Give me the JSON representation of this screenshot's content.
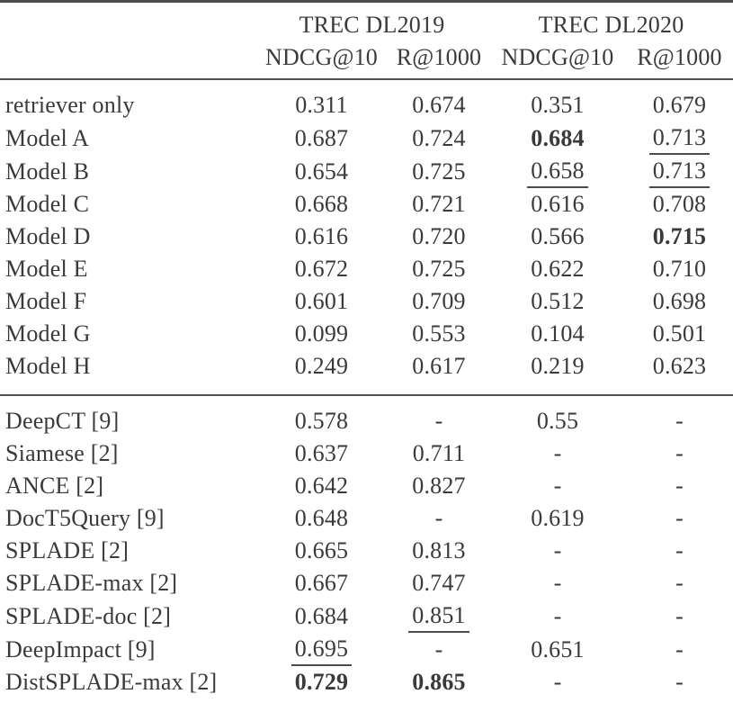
{
  "table": {
    "group_headers": [
      {
        "label": "TREC DL2019"
      },
      {
        "label": "TREC DL2020"
      }
    ],
    "metric_headers": [
      "NDCG@10",
      "R@1000",
      "NDCG@10",
      "R@1000"
    ],
    "sections": [
      {
        "rows": [
          {
            "label": "retriever only",
            "cells": [
              {
                "text": "0.311"
              },
              {
                "text": "0.674"
              },
              {
                "text": "0.351"
              },
              {
                "text": "0.679"
              }
            ]
          },
          {
            "label": "Model A",
            "cells": [
              {
                "text": "0.687"
              },
              {
                "text": "0.724"
              },
              {
                "text": "0.684",
                "style": "bold"
              },
              {
                "text": "0.713",
                "style": "underline"
              }
            ]
          },
          {
            "label": "Model B",
            "cells": [
              {
                "text": "0.654"
              },
              {
                "text": "0.725"
              },
              {
                "text": "0.658",
                "style": "underline"
              },
              {
                "text": "0.713",
                "style": "underline"
              }
            ]
          },
          {
            "label": "Model C",
            "cells": [
              {
                "text": "0.668"
              },
              {
                "text": "0.721"
              },
              {
                "text": "0.616"
              },
              {
                "text": "0.708"
              }
            ]
          },
          {
            "label": "Model D",
            "cells": [
              {
                "text": "0.616"
              },
              {
                "text": "0.720"
              },
              {
                "text": "0.566"
              },
              {
                "text": "0.715",
                "style": "bold"
              }
            ]
          },
          {
            "label": "Model E",
            "cells": [
              {
                "text": "0.672"
              },
              {
                "text": "0.725"
              },
              {
                "text": "0.622"
              },
              {
                "text": "0.710"
              }
            ]
          },
          {
            "label": "Model F",
            "cells": [
              {
                "text": "0.601"
              },
              {
                "text": "0.709"
              },
              {
                "text": "0.512"
              },
              {
                "text": "0.698"
              }
            ]
          },
          {
            "label": "Model G",
            "cells": [
              {
                "text": "0.099"
              },
              {
                "text": "0.553"
              },
              {
                "text": "0.104"
              },
              {
                "text": "0.501"
              }
            ]
          },
          {
            "label": "Model H",
            "cells": [
              {
                "text": "0.249"
              },
              {
                "text": "0.617"
              },
              {
                "text": "0.219"
              },
              {
                "text": "0.623"
              }
            ]
          }
        ]
      },
      {
        "rows": [
          {
            "label": "DeepCT [9]",
            "cells": [
              {
                "text": "0.578"
              },
              {
                "text": "-"
              },
              {
                "text": "0.55"
              },
              {
                "text": "-"
              }
            ]
          },
          {
            "label": "Siamese [2]",
            "cells": [
              {
                "text": "0.637"
              },
              {
                "text": "0.711"
              },
              {
                "text": "-"
              },
              {
                "text": "-"
              }
            ]
          },
          {
            "label": "ANCE [2]",
            "cells": [
              {
                "text": "0.642"
              },
              {
                "text": "0.827"
              },
              {
                "text": "-"
              },
              {
                "text": "-"
              }
            ]
          },
          {
            "label": "DocT5Query [9]",
            "cells": [
              {
                "text": "0.648"
              },
              {
                "text": "-"
              },
              {
                "text": "0.619"
              },
              {
                "text": "-"
              }
            ]
          },
          {
            "label": "SPLADE [2]",
            "cells": [
              {
                "text": "0.665"
              },
              {
                "text": "0.813"
              },
              {
                "text": "-"
              },
              {
                "text": "-"
              }
            ]
          },
          {
            "label": "SPLADE-max [2]",
            "cells": [
              {
                "text": "0.667"
              },
              {
                "text": "0.747"
              },
              {
                "text": "-"
              },
              {
                "text": "-"
              }
            ]
          },
          {
            "label": "SPLADE-doc [2]",
            "cells": [
              {
                "text": "0.684"
              },
              {
                "text": "0.851",
                "style": "underline"
              },
              {
                "text": "-"
              },
              {
                "text": "-"
              }
            ]
          },
          {
            "label": "DeepImpact [9]",
            "cells": [
              {
                "text": "0.695",
                "style": "underline"
              },
              {
                "text": "-"
              },
              {
                "text": "0.651"
              },
              {
                "text": "-"
              }
            ]
          },
          {
            "label": "DistSPLADE-max [2]",
            "cells": [
              {
                "text": "0.729",
                "style": "bold"
              },
              {
                "text": "0.865",
                "style": "bold"
              },
              {
                "text": "-"
              },
              {
                "text": "-"
              }
            ]
          }
        ]
      }
    ],
    "colors": {
      "text": "#3a3a3a",
      "rule": "#4c4c4c"
    }
  }
}
